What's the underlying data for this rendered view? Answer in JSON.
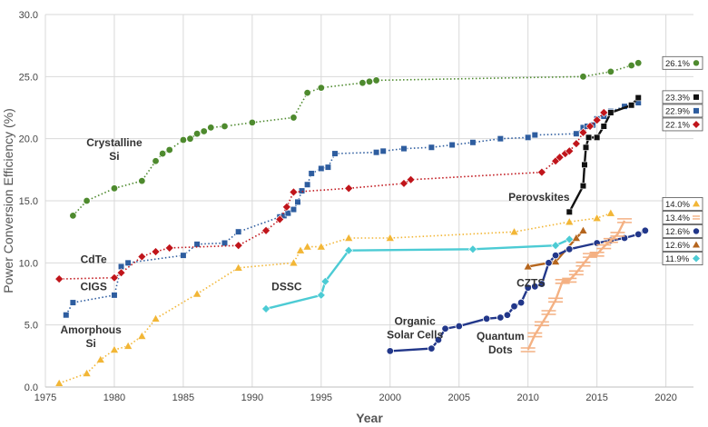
{
  "chart_data": {
    "type": "line",
    "xlabel": "Year",
    "ylabel": "Power Conversion Efficiency (%)",
    "xlim": [
      1975,
      2022
    ],
    "ylim": [
      0,
      30
    ],
    "x_ticks": [
      "1975",
      "1980",
      "1985",
      "1990",
      "1995",
      "2000",
      "2005",
      "2010",
      "2015",
      "2020"
    ],
    "y_ticks": [
      "0.0",
      "5.0",
      "10.0",
      "15.0",
      "20.0",
      "25.0",
      "30.0"
    ],
    "grid": true,
    "series": [
      {
        "name": "Crystalline Si",
        "color": "#4e8a2e",
        "marker": "circle",
        "style": "dotted",
        "end_label": "26.1%",
        "x": [
          1977,
          1978,
          1980,
          1982,
          1983,
          1983.5,
          1984,
          1985,
          1985.5,
          1986,
          1986.5,
          1987,
          1988,
          1990,
          1993,
          1994,
          1995,
          1998,
          1998.5,
          1999,
          2014,
          2016,
          2017.5,
          2018
        ],
        "y": [
          13.8,
          15.0,
          16.0,
          16.6,
          18.2,
          18.8,
          19.1,
          19.9,
          20.0,
          20.4,
          20.6,
          20.9,
          21.0,
          21.3,
          21.7,
          23.7,
          24.1,
          24.5,
          24.6,
          24.7,
          25.0,
          25.4,
          25.9,
          26.1
        ]
      },
      {
        "name": "CIGS",
        "color": "#2e5d9f",
        "marker": "square",
        "style": "dotted",
        "end_label": "22.9%",
        "x": [
          1976.5,
          1977,
          1980,
          1980.5,
          1981,
          1985,
          1986,
          1988,
          1989,
          1992,
          1992.3,
          1992.6,
          1993,
          1993.3,
          1993.6,
          1994,
          1994.3,
          1995,
          1995.5,
          1996,
          1999,
          1999.5,
          2001,
          2003,
          2004.5,
          2006,
          2008,
          2010,
          2010.5,
          2013.5,
          2014,
          2014.3,
          2014.7,
          2015,
          2015.5,
          2016,
          2017,
          2018
        ],
        "y": [
          5.8,
          6.8,
          7.4,
          9.7,
          10.0,
          10.6,
          11.5,
          11.6,
          12.5,
          13.7,
          13.8,
          14.0,
          14.3,
          14.9,
          15.8,
          16.3,
          17.2,
          17.6,
          17.7,
          18.8,
          18.9,
          19.0,
          19.2,
          19.3,
          19.5,
          19.7,
          20.0,
          20.1,
          20.3,
          20.4,
          20.9,
          21.0,
          21.1,
          21.6,
          21.8,
          22.2,
          22.6,
          22.9
        ]
      },
      {
        "name": "CdTe",
        "color": "#c0151b",
        "marker": "diamond",
        "style": "dotted",
        "end_label": "22.1%",
        "x": [
          1976,
          1980,
          1980.5,
          1982,
          1983,
          1984,
          1989,
          1991,
          1992,
          1992.5,
          1993,
          1997,
          2001,
          2001.5,
          2011,
          2012,
          2012.3,
          2012.7,
          2013,
          2013.5,
          2014,
          2014.5,
          2015,
          2015.5
        ],
        "y": [
          8.7,
          8.8,
          9.2,
          10.5,
          10.9,
          11.2,
          11.4,
          12.6,
          13.5,
          14.5,
          15.7,
          16.0,
          16.4,
          16.7,
          17.3,
          18.2,
          18.5,
          18.8,
          19.0,
          19.6,
          20.5,
          21.0,
          21.5,
          22.1
        ]
      },
      {
        "name": "Amorphous Si",
        "color": "#f2b636",
        "marker": "triangle",
        "style": "dotted",
        "end_label": "14.0%",
        "x": [
          1976,
          1978,
          1979,
          1980,
          1981,
          1982,
          1983,
          1986,
          1989,
          1993,
          1993.5,
          1994,
          1995,
          1997,
          2000,
          2009,
          2013,
          2015,
          2016
        ],
        "y": [
          0.3,
          1.1,
          2.2,
          3.0,
          3.3,
          4.1,
          5.5,
          7.5,
          9.6,
          10.0,
          11.0,
          11.3,
          11.3,
          12.0,
          12.0,
          12.5,
          13.3,
          13.6,
          14.0
        ]
      },
      {
        "name": "DSSC",
        "color": "#4ccbd4",
        "marker": "diamond",
        "style": "solid",
        "end_label": "11.9%",
        "x": [
          1991,
          1995,
          1995.3,
          1997,
          2006,
          2012,
          2013
        ],
        "y": [
          6.3,
          7.4,
          8.5,
          11.0,
          11.1,
          11.4,
          11.9
        ]
      },
      {
        "name": "Perovskites",
        "color": "#111111",
        "marker": "square",
        "style": "solid",
        "end_label": "23.3%",
        "x": [
          2013,
          2014,
          2014.1,
          2014.2,
          2014.4,
          2015,
          2015.5,
          2016,
          2017.5,
          2018
        ],
        "y": [
          14.1,
          16.2,
          17.9,
          19.3,
          20.1,
          20.1,
          21.0,
          22.1,
          22.7,
          23.3
        ]
      },
      {
        "name": "CZTS",
        "color": "#b5651d",
        "marker": "triangle",
        "style": "solid",
        "end_label": "12.6%",
        "x": [
          2010,
          2012,
          2013.5,
          2014
        ],
        "y": [
          9.7,
          10.1,
          12.0,
          12.6
        ]
      },
      {
        "name": "Organic Solar Cells",
        "color": "#22378a",
        "marker": "circle",
        "style": "solid",
        "end_label": "12.6%",
        "x": [
          2000,
          2003,
          2003.5,
          2004,
          2005,
          2007,
          2008,
          2008.5,
          2009,
          2009.5,
          2010,
          2010.5,
          2011,
          2011.5,
          2012,
          2013,
          2015,
          2016,
          2017,
          2018,
          2018.5
        ],
        "y": [
          2.9,
          3.1,
          3.8,
          4.7,
          4.9,
          5.5,
          5.6,
          5.8,
          6.5,
          6.8,
          8.0,
          8.1,
          8.3,
          10.0,
          10.6,
          11.1,
          11.6,
          11.8,
          12.0,
          12.3,
          12.6
        ]
      },
      {
        "name": "Quantum Dots",
        "color": "#f4b183",
        "marker": "hbar",
        "style": "solid",
        "end_label": "13.4%",
        "x": [
          2010,
          2010.5,
          2011,
          2011.5,
          2012,
          2012.5,
          2013,
          2013.5,
          2014,
          2014.5,
          2015,
          2015.5,
          2016,
          2016.5,
          2017
        ],
        "y": [
          3.0,
          4.2,
          5.1,
          6.0,
          7.0,
          8.5,
          8.6,
          9.2,
          9.9,
          10.6,
          10.7,
          11.3,
          11.8,
          12.3,
          13.4
        ]
      }
    ],
    "series_labels": [
      {
        "lines": [
          "Crystalline",
          "Si"
        ],
        "series": "Crystalline Si",
        "anchor": "middle"
      },
      {
        "lines": [
          "CdTe"
        ],
        "series": "CdTe",
        "anchor": "middle"
      },
      {
        "lines": [
          "CIGS"
        ],
        "series": "CIGS",
        "anchor": "middle"
      },
      {
        "lines": [
          "Amorphous",
          "Si"
        ],
        "series": "Amorphous Si",
        "anchor": "middle"
      },
      {
        "lines": [
          "DSSC"
        ],
        "series": "DSSC",
        "anchor": "middle"
      },
      {
        "lines": [
          "Perovskites"
        ],
        "series": "Perovskites",
        "anchor": "middle"
      },
      {
        "lines": [
          "CZTS"
        ],
        "series": "CZTS",
        "anchor": "middle"
      },
      {
        "lines": [
          "Organic",
          "Solar Cells"
        ],
        "series": "Organic Solar Cells",
        "anchor": "middle"
      },
      {
        "lines": [
          "Quantum",
          "Dots"
        ],
        "series": "Quantum Dots",
        "anchor": "middle"
      }
    ]
  }
}
